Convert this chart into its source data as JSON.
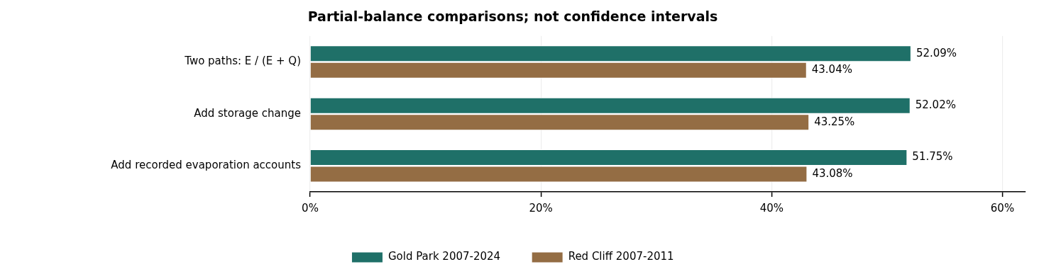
{
  "chart_data": {
    "type": "bar",
    "orientation": "horizontal",
    "title": "Partial-balance comparisons; not confidence intervals",
    "categories": [
      "Two paths: E / (E + Q)",
      "Add storage change",
      "Add recorded evaporation accounts"
    ],
    "series": [
      {
        "name": "Gold Park 2007-2024",
        "color": "#1f7068",
        "values": [
          52.09,
          52.02,
          51.75
        ],
        "value_labels": [
          "52.09%",
          "52.02%",
          "51.75%"
        ]
      },
      {
        "name": "Red Cliff 2007-2011",
        "color": "#946d44",
        "values": [
          43.04,
          43.25,
          43.08
        ],
        "value_labels": [
          "43.04%",
          "43.25%",
          "43.08%"
        ]
      }
    ],
    "xlim": [
      0,
      62
    ],
    "xticks": [
      {
        "value": 0,
        "label": "0%"
      },
      {
        "value": 20,
        "label": "20%"
      },
      {
        "value": 40,
        "label": "40%"
      },
      {
        "value": 60,
        "label": "60%"
      }
    ],
    "grid": "x",
    "legend": "bottom"
  }
}
